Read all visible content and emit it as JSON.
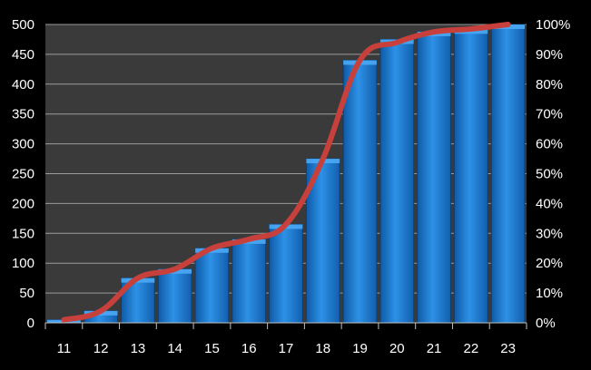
{
  "chart_data": {
    "type": "bar",
    "categories": [
      "11",
      "12",
      "13",
      "14",
      "15",
      "16",
      "17",
      "18",
      "19",
      "20",
      "21",
      "22",
      "23"
    ],
    "series": [
      {
        "type": "bar",
        "axis": "left",
        "values": [
          5,
          20,
          75,
          90,
          125,
          140,
          165,
          275,
          440,
          475,
          488,
          492,
          500
        ]
      },
      {
        "type": "line",
        "axis": "right",
        "values": [
          0.01,
          0.04,
          0.15,
          0.18,
          0.25,
          0.28,
          0.33,
          0.55,
          0.88,
          0.94,
          0.975,
          0.985,
          1.0
        ]
      }
    ],
    "y_left": {
      "ylim": [
        0,
        500
      ],
      "ticks": [
        "0",
        "50",
        "100",
        "150",
        "200",
        "250",
        "300",
        "350",
        "400",
        "450",
        "500"
      ]
    },
    "y_right": {
      "ylim": [
        0,
        1
      ],
      "ticks": [
        "0%",
        "10%",
        "20%",
        "30%",
        "40%",
        "50%",
        "60%",
        "70%",
        "80%",
        "90%",
        "100%"
      ]
    },
    "grid": true,
    "legend": "none",
    "title": "",
    "xlabel": "",
    "ylabel": ""
  },
  "colors": {
    "page_background": "#000000",
    "plot_background": "#3a3a3a",
    "gridline": "#9a9a9a",
    "bar_fill": "#1f7fd6",
    "bar_highlight": "#4aa8f5",
    "bar_edge": "#0b3f74",
    "line": "#c8403c",
    "text": "#ffffff"
  }
}
